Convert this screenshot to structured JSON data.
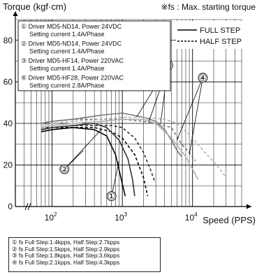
{
  "chart_data": {
    "type": "line",
    "title": "Torque (kgf·cm)",
    "annotation": "※fs : Max. starting torque",
    "xlabel": "Speed (PPS)",
    "x_scale": "log",
    "xlim": [
      30,
      50000
    ],
    "ylim": [
      0,
      90
    ],
    "y_ticks": [
      0,
      20,
      40,
      60,
      80
    ],
    "x_ticks": [
      {
        "value": 100,
        "base": "10",
        "exp": "2"
      },
      {
        "value": 1000,
        "base": "10",
        "exp": "3"
      },
      {
        "value": 10000,
        "base": "10",
        "exp": "4"
      }
    ],
    "grid": true,
    "legend_placement": "top-right",
    "legend": [
      {
        "label": "FULL STEP",
        "style": "solid"
      },
      {
        "label": "HALF STEP",
        "style": "dashed"
      }
    ],
    "driver_list": [
      {
        "num": "①",
        "line1": "Driver MD5-ND14, Power 24VDC",
        "line2": "Setting current 1.4A/Phase"
      },
      {
        "num": "②",
        "line1": "Driver MD5-ND14, Power 24VDC",
        "line2": "Setting current 1.4A/Phase"
      },
      {
        "num": "③",
        "line1": "Driver MD5-HF14, Power 220VAC",
        "line2": "Setting current 1.4A/Phase"
      },
      {
        "num": "④",
        "line1": "Driver MD5-HF28, Power 220VAC",
        "line2": "Setting current 2.8A/Phase"
      }
    ],
    "series": [
      {
        "id": "1-full",
        "driver": "①",
        "step": "full",
        "color": "#000000",
        "points": [
          [
            70,
            36
          ],
          [
            100,
            37
          ],
          [
            200,
            38
          ],
          [
            400,
            37
          ],
          [
            600,
            34
          ],
          [
            800,
            25
          ],
          [
            1000,
            11
          ],
          [
            1100,
            5
          ]
        ]
      },
      {
        "id": "1-half",
        "driver": "①",
        "step": "half",
        "color": "#000000",
        "points": [
          [
            70,
            37
          ],
          [
            100,
            38
          ],
          [
            200,
            38
          ],
          [
            400,
            38
          ],
          [
            700,
            36
          ],
          [
            1000,
            33
          ],
          [
            1500,
            25
          ],
          [
            2000,
            14
          ],
          [
            2300,
            5
          ]
        ]
      },
      {
        "id": "2-full",
        "driver": "②",
        "step": "full",
        "color": "#333333",
        "points": [
          [
            70,
            37
          ],
          [
            100,
            38
          ],
          [
            200,
            39
          ],
          [
            400,
            40
          ],
          [
            600,
            38
          ],
          [
            900,
            32
          ],
          [
            1200,
            23
          ],
          [
            1400,
            13
          ],
          [
            1500,
            5
          ]
        ]
      },
      {
        "id": "2-half",
        "driver": "②",
        "step": "half",
        "color": "#333333",
        "points": [
          [
            70,
            38
          ],
          [
            100,
            38
          ],
          [
            200,
            39
          ],
          [
            400,
            39
          ],
          [
            700,
            39
          ],
          [
            1000,
            38
          ],
          [
            1500,
            33
          ],
          [
            2000,
            26
          ],
          [
            2500,
            18
          ],
          [
            2900,
            12
          ]
        ]
      },
      {
        "id": "3-full",
        "driver": "③",
        "step": "full",
        "color": "#777777",
        "points": [
          [
            70,
            40
          ],
          [
            100,
            41
          ],
          [
            200,
            42
          ],
          [
            500,
            44
          ],
          [
            1000,
            45
          ],
          [
            2000,
            43
          ],
          [
            3000,
            41
          ],
          [
            4000,
            37
          ],
          [
            5000,
            32
          ],
          [
            6000,
            27
          ],
          [
            7000,
            24
          ]
        ]
      },
      {
        "id": "3-half",
        "driver": "③",
        "step": "half",
        "color": "#777777",
        "points": [
          [
            70,
            40
          ],
          [
            100,
            41
          ],
          [
            200,
            42
          ],
          [
            500,
            42
          ],
          [
            1000,
            42
          ],
          [
            2000,
            41
          ],
          [
            3000,
            40
          ],
          [
            5000,
            38
          ],
          [
            7000,
            30
          ],
          [
            9000,
            26
          ],
          [
            11000,
            22
          ]
        ]
      },
      {
        "id": "4-full",
        "driver": "④",
        "step": "full",
        "color": "#b0b0b0",
        "points": [
          [
            70,
            38
          ],
          [
            100,
            39
          ],
          [
            200,
            40
          ],
          [
            500,
            41
          ],
          [
            1000,
            42
          ],
          [
            2000,
            42
          ],
          [
            3000,
            40
          ],
          [
            5000,
            33
          ],
          [
            8000,
            24
          ],
          [
            12000,
            13
          ]
        ]
      },
      {
        "id": "4-half",
        "driver": "④",
        "step": "half",
        "color": "#b0b0b0",
        "points": [
          [
            70,
            39
          ],
          [
            100,
            40
          ],
          [
            200,
            41
          ],
          [
            500,
            42
          ],
          [
            1000,
            43
          ],
          [
            2000,
            43
          ],
          [
            4000,
            42
          ],
          [
            6000,
            40
          ],
          [
            10000,
            33
          ],
          [
            15000,
            26
          ],
          [
            22000,
            20
          ],
          [
            30000,
            14
          ]
        ]
      }
    ],
    "callouts": [
      "①",
      "②",
      "③",
      "④"
    ]
  },
  "notes": [
    "① fs Full Step:1.4kpps, Half Step:2.7kpps",
    "② fs Full Step:1.5kpps, Half Step:2.9kpps",
    "③ fs Full Step:1.8kpps, Half Step:3.6kpps",
    "④ fs Full Step:2.1kpps, Half Step:4.3kpps"
  ]
}
